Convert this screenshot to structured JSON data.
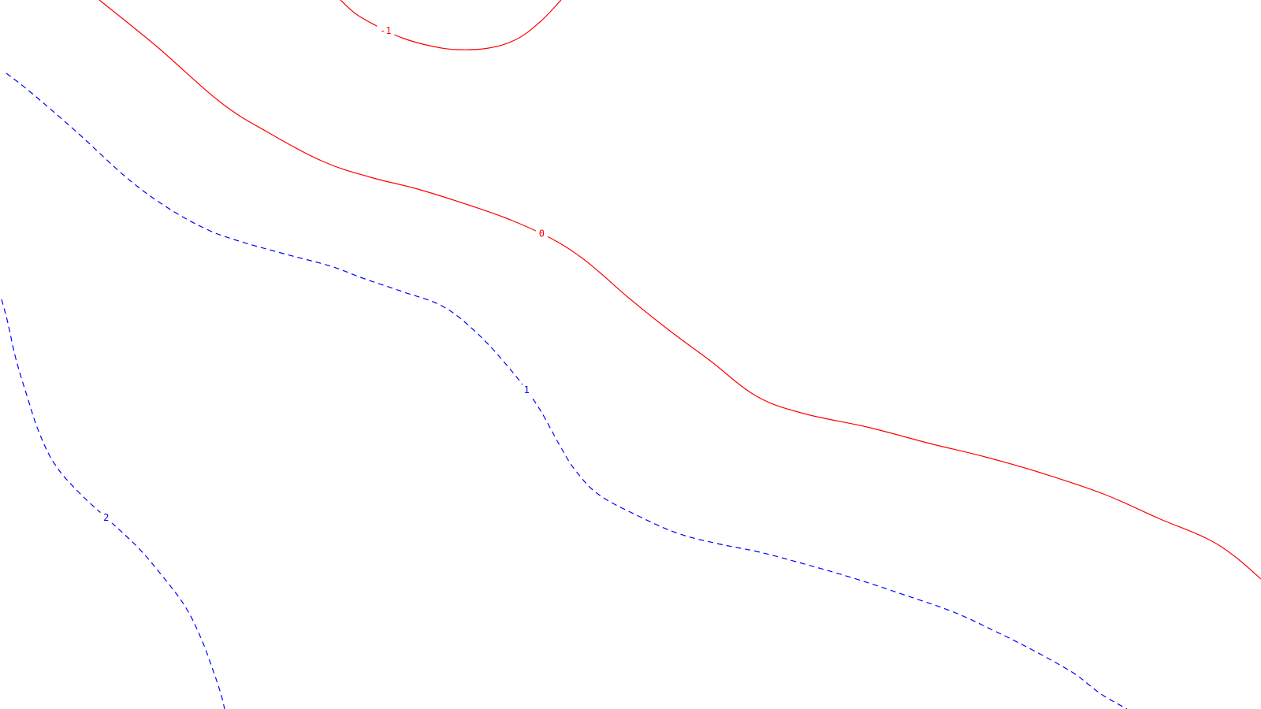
{
  "chart_data": {
    "type": "contour",
    "title": "",
    "xlabel": "",
    "ylabel": "",
    "grid": false,
    "legend": "none",
    "contours": [
      {
        "level": -1,
        "label": "-1",
        "style": "solid",
        "color": "#ff0000",
        "label_at": 0.22
      },
      {
        "level": 0,
        "label": "0",
        "style": "solid",
        "color": "#ff0000",
        "label_at": 0.385
      },
      {
        "level": 1,
        "label": "1",
        "style": "dashed",
        "color": "#0000ff",
        "label_at": 0.47
      },
      {
        "level": 2,
        "label": "2",
        "style": "dashed",
        "color": "#0000ff",
        "label_at": 0.52
      }
    ]
  }
}
